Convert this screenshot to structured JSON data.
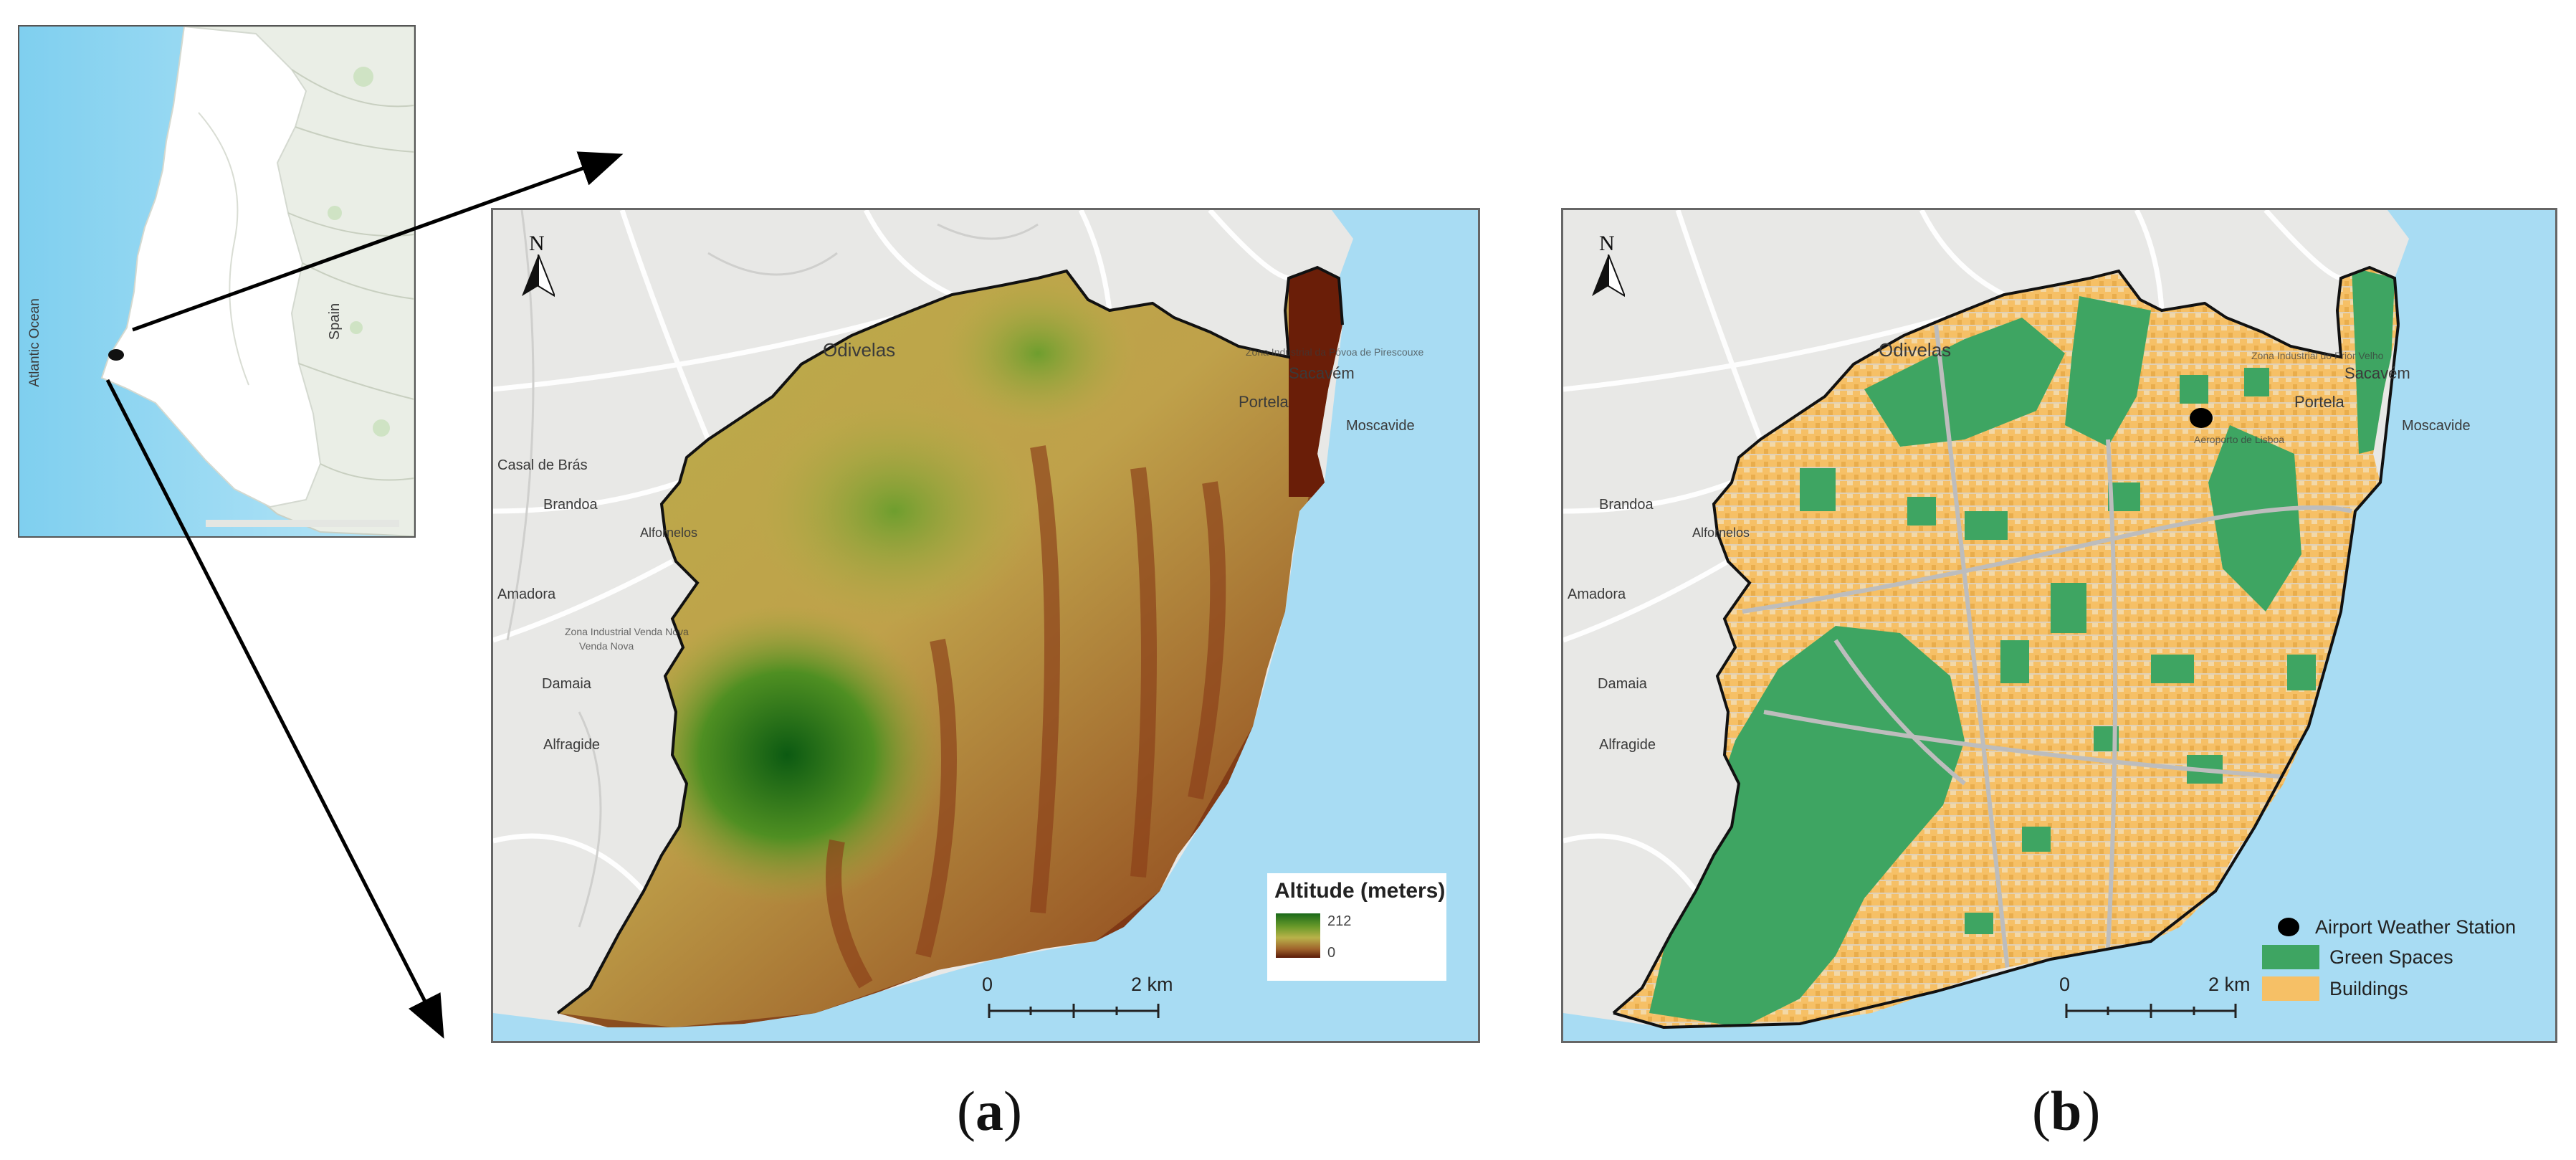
{
  "colors": {
    "ocean": "#a8dcf3",
    "land": "#ececea",
    "road": "#ffffff",
    "green_space": "#3ea562",
    "buildings": "#f6c066",
    "boundary": "#111111",
    "altitude_high": "#1a6a1a",
    "altitude_low": "#5a1a08"
  },
  "inset": {
    "ocean_label": "Atlantic Ocean",
    "country_label": "Spain"
  },
  "map_a": {
    "north": "N",
    "place_labels": [
      "Odivelas",
      "Sacavém",
      "Portela",
      "Moscavide",
      "Brandoa",
      "Alfornelos",
      "Amadora",
      "Damaia",
      "Alfragide",
      "Zona Industrial da Póvoa de Pirescouxe",
      "Casal de Brás",
      "Venda Nova",
      "Zona Industrial Venda Nova"
    ],
    "legend_title": "Altitude (meters)",
    "legend_high": "212",
    "legend_low": "0",
    "scale_start": "0",
    "scale_end": "2 km"
  },
  "map_b": {
    "north": "N",
    "place_labels": [
      "Odivelas",
      "Sacavém",
      "Portela",
      "Moscavide",
      "Brandoa",
      "Alfornelos",
      "Amadora",
      "Damaia",
      "Alfragide",
      "Zona Industrial do Prior Velho",
      "Aeroporto de Lisboa"
    ],
    "legend": [
      {
        "label": "Airport Weather Station",
        "symbol": "black-dot"
      },
      {
        "label": "Green Spaces",
        "color": "#3ea562"
      },
      {
        "label": "Buildings",
        "color": "#f6c066"
      }
    ],
    "scale_start": "0",
    "scale_end": "2 km"
  },
  "captions": {
    "a": "(a)",
    "b": "(b)"
  }
}
